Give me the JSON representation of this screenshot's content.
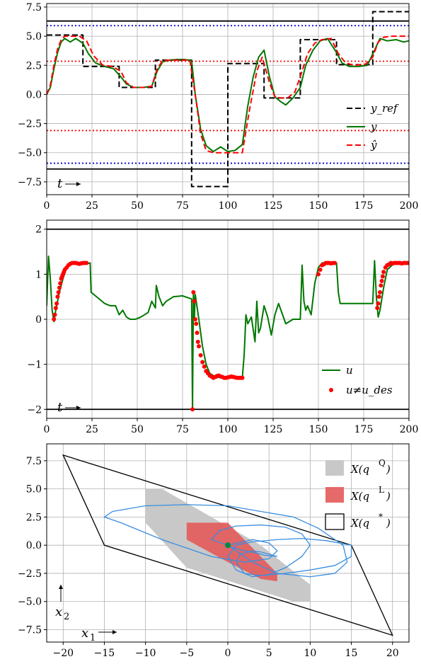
{
  "chart_data": [
    {
      "type": "line",
      "xlim": [
        0,
        200
      ],
      "ylim": [
        -8.6,
        7.8
      ],
      "xticks": [
        0,
        25,
        50,
        75,
        100,
        125,
        150,
        175,
        200
      ],
      "yticks": [
        -7.5,
        -5.0,
        -2.5,
        0.0,
        2.5,
        5.0,
        7.5
      ],
      "xtick_labels": [
        "0",
        "25",
        "50",
        "75",
        "100",
        "125",
        "150",
        "175",
        "200"
      ],
      "ytick_labels": [
        "−7.5",
        "−5.0",
        "−2.5",
        "0.0",
        "2.5",
        "5.0",
        "7.5"
      ],
      "grid": true,
      "legend_position": "center-right",
      "annotation": "t",
      "hlines": [
        {
          "y": 6.3,
          "color": "#000000",
          "style": "solid"
        },
        {
          "y": -6.4,
          "color": "#000000",
          "style": "solid"
        },
        {
          "y": 5.9,
          "color": "#0000cc",
          "style": "dotted"
        },
        {
          "y": -5.9,
          "color": "#0000cc",
          "style": "dotted"
        },
        {
          "y": 2.85,
          "color": "#ff0000",
          "style": "dotted"
        },
        {
          "y": -3.1,
          "color": "#ff0000",
          "style": "dotted"
        }
      ],
      "series": [
        {
          "name": "y_ref",
          "color": "#000000",
          "style": "dashed",
          "x": [
            0,
            20,
            20,
            40,
            40,
            60,
            60,
            80,
            80,
            100,
            100,
            120,
            120,
            140,
            140,
            160,
            160,
            180,
            180,
            200
          ],
          "y": [
            5.1,
            5.1,
            2.4,
            2.4,
            0.6,
            0.6,
            2.95,
            2.95,
            -7.9,
            -7.9,
            2.65,
            2.65,
            -0.3,
            -0.3,
            4.7,
            4.7,
            2.55,
            2.55,
            7.1,
            7.1
          ]
        },
        {
          "name": "y",
          "color": "#007700",
          "style": "solid",
          "x": [
            0,
            2,
            4,
            6,
            8,
            10,
            13,
            16,
            20,
            23,
            27,
            32,
            37,
            41,
            44,
            48,
            53,
            58,
            61,
            64,
            68,
            72,
            76,
            80,
            82,
            85,
            88,
            92,
            96,
            100,
            104,
            108,
            111,
            114,
            117,
            120,
            123,
            126,
            129,
            132,
            136,
            140,
            143,
            147,
            151,
            155,
            160,
            163,
            167,
            172,
            177,
            181,
            184,
            188,
            193,
            197,
            200
          ],
          "y": [
            0.0,
            0.6,
            2.2,
            3.6,
            4.5,
            4.8,
            4.5,
            4.8,
            4.4,
            3.5,
            2.7,
            2.4,
            2.2,
            1.5,
            0.9,
            0.6,
            0.6,
            0.7,
            2.0,
            2.8,
            2.95,
            3.0,
            3.0,
            2.9,
            0.0,
            -3.0,
            -4.4,
            -4.9,
            -4.5,
            -4.9,
            -4.8,
            -4.3,
            -1.0,
            1.5,
            3.2,
            3.8,
            1.5,
            -0.2,
            -0.6,
            -0.9,
            -0.3,
            0.6,
            2.5,
            3.8,
            4.6,
            4.8,
            3.6,
            2.7,
            2.4,
            2.4,
            2.5,
            3.8,
            4.8,
            4.6,
            4.7,
            4.5,
            4.6
          ]
        },
        {
          "name": "ŷ",
          "color": "#ff0000",
          "style": "dashed",
          "x": [
            0,
            2,
            4,
            6,
            8,
            10,
            14,
            18,
            22,
            26,
            31,
            36,
            41,
            44,
            48,
            54,
            58,
            61,
            64,
            68,
            74,
            79,
            82,
            85,
            88,
            92,
            98,
            104,
            108,
            112,
            116,
            119,
            123,
            126,
            129,
            133,
            137,
            141,
            144,
            148,
            152,
            157,
            161,
            165,
            170,
            176,
            180,
            183,
            186,
            190,
            195,
            200
          ],
          "y": [
            0.0,
            0.8,
            2.5,
            3.9,
            4.7,
            5.0,
            5.0,
            5.0,
            4.6,
            3.3,
            2.5,
            2.4,
            2.0,
            1.0,
            0.6,
            0.6,
            0.7,
            2.2,
            2.9,
            2.95,
            2.95,
            2.95,
            0.0,
            -3.4,
            -4.8,
            -5.0,
            -5.0,
            -5.0,
            -5.0,
            -1.3,
            2.0,
            3.2,
            1.0,
            -0.2,
            -0.3,
            -0.3,
            0.2,
            2.0,
            3.5,
            4.4,
            4.7,
            4.8,
            3.5,
            2.7,
            2.5,
            2.6,
            3.2,
            4.5,
            4.9,
            5.0,
            5.0,
            5.0
          ]
        }
      ]
    },
    {
      "type": "line",
      "xlim": [
        0,
        200
      ],
      "ylim": [
        -2.2,
        2.2
      ],
      "xticks": [
        0,
        25,
        50,
        75,
        100,
        125,
        150,
        175,
        200
      ],
      "yticks": [
        -2,
        -1,
        0,
        1,
        2
      ],
      "xtick_labels": [
        "0",
        "25",
        "50",
        "75",
        "100",
        "125",
        "150",
        "175",
        "200"
      ],
      "ytick_labels": [
        "−2",
        "−1",
        "0",
        "1",
        "2"
      ],
      "grid": true,
      "legend_position": "bottom-right",
      "annotation": "t",
      "hlines": [
        {
          "y": 2,
          "color": "#000000",
          "style": "solid"
        },
        {
          "y": -2,
          "color": "#000000",
          "style": "solid"
        }
      ],
      "series": [
        {
          "name": "u",
          "color": "#007700",
          "style": "solid",
          "x": [
            0,
            1,
            2,
            3,
            4,
            5,
            7,
            9,
            11,
            13,
            16,
            20,
            24,
            24.5,
            26,
            29,
            32,
            35,
            38,
            40,
            42,
            44,
            46,
            49,
            52,
            56,
            58,
            60,
            60.5,
            62,
            64,
            66,
            70,
            75,
            80,
            80.5,
            81,
            81.5,
            82,
            84,
            86,
            88,
            90,
            92,
            94,
            96,
            100,
            104,
            108,
            109,
            110,
            111,
            113,
            115,
            116,
            117,
            118,
            120,
            122,
            124,
            126,
            128,
            132,
            136,
            140,
            141,
            142,
            143,
            144,
            146,
            148,
            150,
            152,
            155,
            158,
            160,
            161,
            162,
            164,
            168,
            172,
            176,
            180,
            181,
            182,
            183,
            184,
            186,
            188,
            192,
            196,
            200
          ],
          "y": [
            0.3,
            1.4,
            0.9,
            0.2,
            -0.05,
            0.2,
            0.6,
            0.9,
            1.15,
            1.25,
            1.25,
            1.22,
            1.25,
            0.6,
            0.55,
            0.45,
            0.35,
            0.3,
            0.3,
            0.1,
            0.2,
            0.05,
            0.0,
            0.0,
            0.05,
            0.15,
            0.4,
            0.25,
            0.75,
            0.5,
            0.3,
            0.4,
            0.5,
            0.52,
            0.45,
            -2.0,
            0.6,
            0.0,
            0.55,
            0.0,
            -0.6,
            -1.0,
            -1.2,
            -1.25,
            -1.3,
            -1.27,
            -1.28,
            -1.3,
            -1.3,
            -0.8,
            0.1,
            -0.1,
            0.05,
            -0.5,
            0.4,
            -0.3,
            -0.2,
            0.3,
            0.05,
            -0.35,
            0.1,
            0.35,
            -0.1,
            0.0,
            0.0,
            1.2,
            0.4,
            0.2,
            0.3,
            0.1,
            0.8,
            1.15,
            1.25,
            1.25,
            1.25,
            1.25,
            0.6,
            0.35,
            0.35,
            0.35,
            0.35,
            0.35,
            0.35,
            1.3,
            0.5,
            0.05,
            0.2,
            0.7,
            1.1,
            1.25,
            1.23,
            1.25
          ]
        },
        {
          "name": "u≠u_des",
          "color": "#ff0000",
          "style": "markers",
          "x": [
            4,
            4.5,
            5,
            5.5,
            6,
            6.5,
            7,
            7.5,
            8,
            8.5,
            9,
            9.5,
            10,
            11,
            12,
            13,
            14,
            15,
            16,
            17,
            18,
            19,
            20,
            21,
            22,
            80.5,
            81,
            81.5,
            82,
            82.5,
            83,
            83.5,
            84,
            85,
            86,
            87,
            88,
            89,
            90,
            91,
            92,
            93,
            94,
            95,
            96,
            97,
            98,
            99,
            100,
            101,
            102,
            103,
            104,
            105,
            106,
            107,
            108,
            150,
            151,
            152,
            153,
            154,
            155,
            156,
            157,
            158,
            159,
            182.5,
            183,
            183.5,
            184,
            184.5,
            185,
            185.5,
            186,
            187,
            188,
            189,
            190,
            191,
            192,
            193,
            194,
            195,
            196,
            197,
            198,
            199,
            200
          ],
          "y": [
            0.0,
            0.1,
            0.25,
            0.35,
            0.5,
            0.6,
            0.7,
            0.8,
            0.9,
            0.95,
            1.0,
            1.05,
            1.1,
            1.15,
            1.2,
            1.23,
            1.25,
            1.25,
            1.25,
            1.24,
            1.23,
            1.24,
            1.25,
            1.25,
            1.25,
            -2.0,
            0.6,
            0.4,
            0.0,
            -0.1,
            -0.3,
            -0.5,
            -0.6,
            -0.8,
            -0.95,
            -1.05,
            -1.15,
            -1.2,
            -1.25,
            -1.27,
            -1.3,
            -1.28,
            -1.26,
            -1.25,
            -1.27,
            -1.28,
            -1.3,
            -1.3,
            -1.29,
            -1.28,
            -1.27,
            -1.28,
            -1.29,
            -1.3,
            -1.3,
            -1.3,
            -1.3,
            1.0,
            1.1,
            1.2,
            1.22,
            1.25,
            1.25,
            1.25,
            1.24,
            1.25,
            1.25,
            0.25,
            0.35,
            0.5,
            0.6,
            0.75,
            0.85,
            0.95,
            1.05,
            1.15,
            1.2,
            1.22,
            1.25,
            1.24,
            1.25,
            1.25,
            1.25,
            1.25,
            1.24,
            1.25,
            1.25,
            1.25,
            1.25
          ]
        }
      ]
    },
    {
      "type": "area",
      "xlim": [
        -22,
        22
      ],
      "ylim": [
        -8.6,
        9.0
      ],
      "xticks": [
        -20,
        -15,
        -10,
        -5,
        0,
        5,
        10,
        15,
        20
      ],
      "yticks": [
        -7.5,
        -5.0,
        -2.5,
        0.0,
        2.5,
        5.0,
        7.5
      ],
      "xtick_labels": [
        "−20",
        "−15",
        "−10",
        "−5",
        "0",
        "5",
        "10",
        "15",
        "20"
      ],
      "ytick_labels": [
        "−7.5",
        "−5.0",
        "−2.5",
        "0.0",
        "2.5",
        "5.0",
        "7.5"
      ],
      "grid": true,
      "legend_position": "top-right",
      "xlabel": "x",
      "xlabel_subscript": "1",
      "ylabel": "x",
      "ylabel_subscript": "2",
      "polygons": [
        {
          "name": "X(q",
          "superscript": "Q",
          "color": "#c8c8c8",
          "opacity": 1.0,
          "x": [
            -10,
            -8,
            4,
            10,
            10,
            8,
            -5,
            -10
          ],
          "y": [
            5,
            5,
            0,
            -3.5,
            -5,
            -5,
            -2,
            2
          ]
        },
        {
          "name": "X(q",
          "superscript": "L",
          "color": "#e35a5a",
          "opacity": 0.9,
          "x": [
            -5,
            0,
            6,
            6,
            4,
            0,
            -2,
            -5
          ],
          "y": [
            2,
            2,
            -2.5,
            -3.2,
            -3,
            -1.5,
            -0.7,
            0.5
          ]
        },
        {
          "name": "X(q",
          "superscript": "*",
          "color": "#000000",
          "opacity": 0.0,
          "x": [
            -20,
            15,
            20,
            -15,
            -20
          ],
          "y": [
            8,
            0,
            -8,
            0,
            8
          ]
        }
      ],
      "trajectory": {
        "color": "#3a8ee0",
        "x": [
          0,
          3,
          5,
          6,
          5,
          2,
          -2,
          -8,
          -13,
          -15,
          -14,
          -10,
          -5,
          0,
          4,
          8,
          11,
          14,
          14.5,
          13,
          10,
          6,
          3,
          0,
          -2,
          -1,
          1,
          4,
          7,
          9,
          10,
          9,
          7,
          5,
          3,
          1,
          0,
          1,
          3,
          6,
          9,
          12,
          15,
          15,
          13,
          10,
          7,
          4,
          2,
          1,
          1.5,
          3,
          4,
          5,
          6,
          4.5,
          3.5,
          2,
          0.5,
          0
        ],
        "y": [
          0,
          0.5,
          0.2,
          -0.5,
          -1.2,
          -1.5,
          -1.0,
          0.5,
          2.0,
          2.5,
          3.0,
          3.5,
          3.6,
          3.5,
          3.0,
          2.5,
          1.5,
          0.0,
          -1.5,
          -2.5,
          -2.8,
          -2.5,
          -1.5,
          0.0,
          0.5,
          1.3,
          1.7,
          1.8,
          1.6,
          1.0,
          0.0,
          -1.0,
          -2.0,
          -2.6,
          -2.8,
          -2.2,
          -1.0,
          0.0,
          0.3,
          0.5,
          0.6,
          0.4,
          0.0,
          -1.0,
          -1.8,
          -2.2,
          -2.5,
          -2.7,
          -2.5,
          -1.5,
          -0.8,
          -0.5,
          -0.6,
          -0.8,
          -1.0,
          -0.9,
          -0.7,
          -0.5,
          -0.2,
          0
        ]
      },
      "origin_marker": {
        "x": 0,
        "y": 0,
        "color": "#008844"
      }
    }
  ]
}
